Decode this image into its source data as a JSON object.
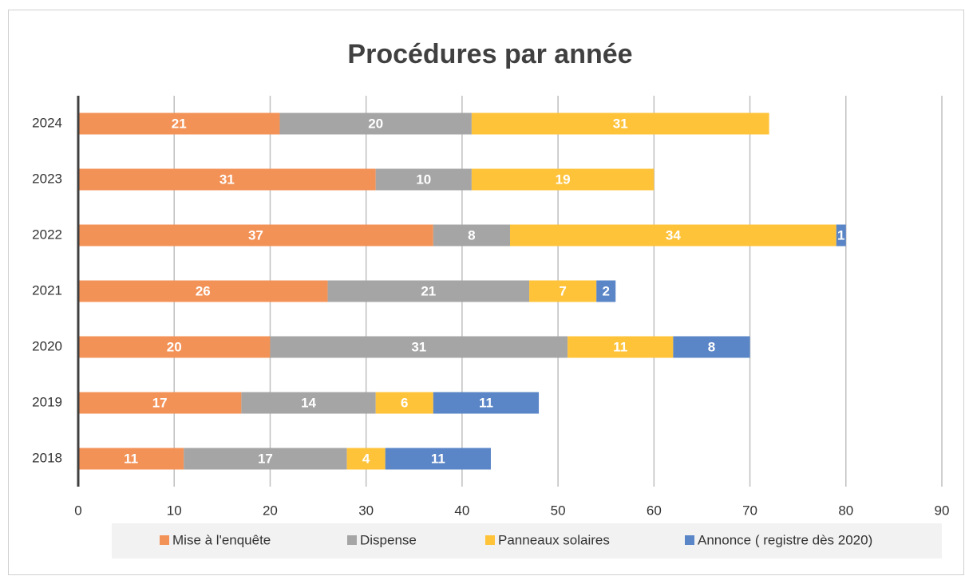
{
  "chart_data": {
    "type": "stacked-bar-horizontal",
    "title": "Procédures par année",
    "categories": [
      "2024",
      "2023",
      "2022",
      "2021",
      "2020",
      "2019",
      "2018"
    ],
    "series": [
      {
        "name": "Mise à l'enquête",
        "color": "#f39257",
        "values": [
          21,
          31,
          37,
          26,
          20,
          17,
          11
        ]
      },
      {
        "name": "Dispense",
        "color": "#a5a5a5",
        "values": [
          20,
          10,
          8,
          21,
          31,
          14,
          17
        ]
      },
      {
        "name": "Panneaux solaires",
        "color": "#ffc33a",
        "values": [
          31,
          19,
          34,
          7,
          11,
          6,
          4
        ]
      },
      {
        "name": "Annonce ( registre dès 2020)",
        "color": "#5a85c6",
        "values": [
          null,
          null,
          1,
          2,
          8,
          11,
          11
        ]
      }
    ],
    "xlim": [
      0,
      90
    ],
    "xticks": [
      0,
      10,
      20,
      30,
      40,
      50,
      60,
      70,
      80,
      90
    ],
    "grid": true,
    "legend": "bottom"
  }
}
